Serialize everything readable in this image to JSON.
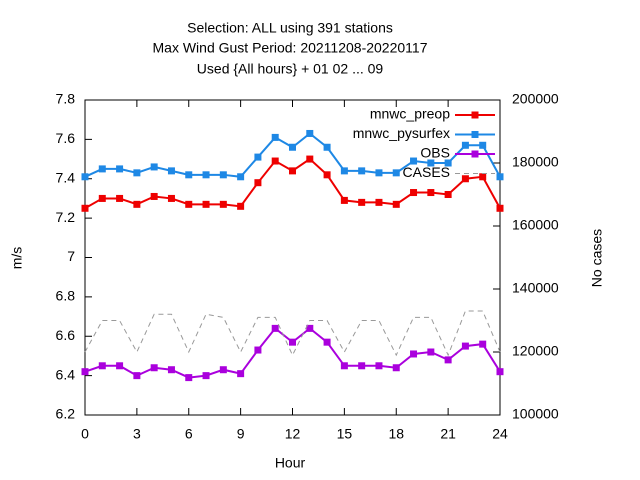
{
  "chart_data": {
    "type": "line",
    "title": [
      "Selection: ALL using   391 stations",
      "Max Wind Gust   Period: 20211208-20220117",
      "Used {All hours} + 01 02 ... 09"
    ],
    "xlabel": "Hour",
    "ylabel": "m/s",
    "y2label": "No cases",
    "x": [
      0,
      1,
      2,
      3,
      4,
      5,
      6,
      7,
      8,
      9,
      10,
      11,
      12,
      13,
      14,
      15,
      16,
      17,
      18,
      19,
      20,
      21,
      22,
      23,
      24
    ],
    "xlim": [
      0,
      24
    ],
    "xticks": [
      0,
      3,
      6,
      9,
      12,
      15,
      18,
      21,
      24
    ],
    "ylim": [
      6.2,
      7.8
    ],
    "yticks": [
      6.2,
      6.4,
      6.6,
      6.8,
      7,
      7.2,
      7.4,
      7.6,
      7.8
    ],
    "y2lim": [
      100000,
      200000
    ],
    "y2ticks": [
      100000,
      120000,
      140000,
      160000,
      180000,
      200000
    ],
    "legend": "top right",
    "series": [
      {
        "name": "mnwc_preop",
        "color": "#ee0000",
        "markers": true,
        "values": [
          7.25,
          7.3,
          7.3,
          7.27,
          7.31,
          7.3,
          7.27,
          7.27,
          7.27,
          7.26,
          7.38,
          7.49,
          7.44,
          7.5,
          7.42,
          7.29,
          7.28,
          7.28,
          7.27,
          7.33,
          7.33,
          7.32,
          7.4,
          7.41,
          7.25
        ]
      },
      {
        "name": "mnwc_pysurfex",
        "color": "#1e88e5",
        "markers": true,
        "values": [
          7.41,
          7.45,
          7.45,
          7.43,
          7.46,
          7.44,
          7.42,
          7.42,
          7.42,
          7.41,
          7.51,
          7.61,
          7.56,
          7.63,
          7.56,
          7.44,
          7.44,
          7.43,
          7.43,
          7.49,
          7.48,
          7.48,
          7.57,
          7.57,
          7.41
        ]
      },
      {
        "name": "OBS",
        "color": "#aa00dd",
        "markers": true,
        "values": [
          6.42,
          6.45,
          6.45,
          6.4,
          6.44,
          6.43,
          6.39,
          6.4,
          6.43,
          6.41,
          6.53,
          6.64,
          6.57,
          6.64,
          6.57,
          6.45,
          6.45,
          6.45,
          6.44,
          6.51,
          6.52,
          6.48,
          6.55,
          6.56,
          6.42
        ]
      },
      {
        "name": "CASES",
        "color": "#999999",
        "dashed": true,
        "axis": "y2",
        "values": [
          120000,
          130000,
          130000,
          120000,
          132000,
          132000,
          120000,
          132000,
          131000,
          120000,
          131000,
          131000,
          119000,
          130000,
          130000,
          120000,
          130000,
          130000,
          119000,
          131000,
          131000,
          119000,
          133000,
          133000,
          120000
        ]
      }
    ]
  }
}
